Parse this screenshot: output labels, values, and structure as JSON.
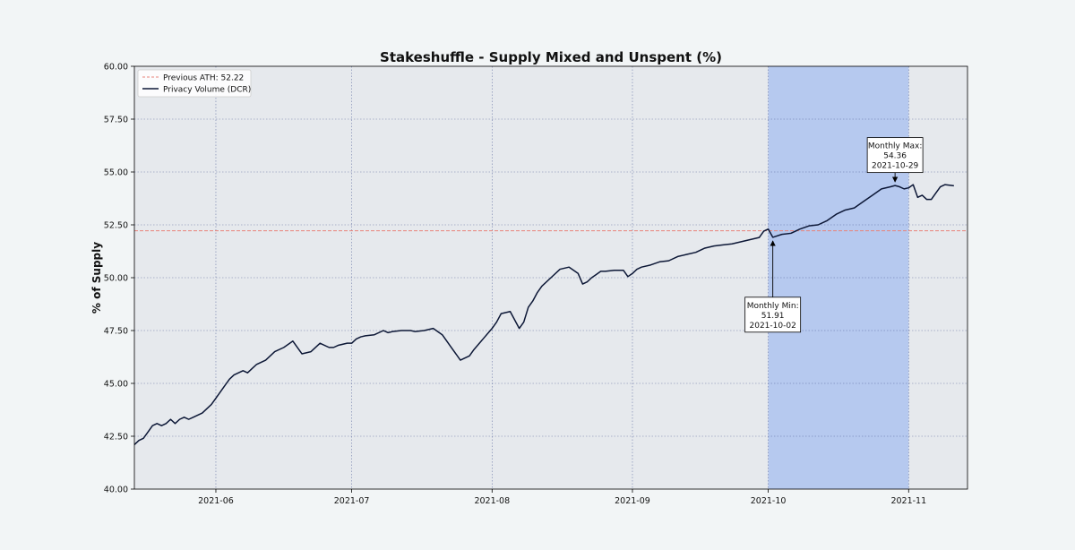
{
  "chart_data": {
    "type": "line",
    "title": "Stakeshuffle - Supply Mixed and Unspent (%)",
    "xlabel": "",
    "ylabel": "% of Supply",
    "ylim": [
      40.0,
      60.0
    ],
    "xlim": [
      "2021-05-14",
      "2021-11-14"
    ],
    "y_ticks": [
      "40.00",
      "42.50",
      "45.00",
      "47.50",
      "50.00",
      "52.50",
      "55.00",
      "57.50",
      "60.00"
    ],
    "x_ticks": [
      {
        "date": "2021-06-01",
        "label": "2021-06"
      },
      {
        "date": "2021-07-01",
        "label": "2021-07"
      },
      {
        "date": "2021-08-01",
        "label": "2021-08"
      },
      {
        "date": "2021-09-01",
        "label": "2021-09"
      },
      {
        "date": "2021-10-01",
        "label": "2021-10"
      },
      {
        "date": "2021-11-01",
        "label": "2021-11"
      }
    ],
    "grid": true,
    "legend_position": "top-left",
    "colors": {
      "plot_background": "#e6e9ed",
      "line": "#0c1736",
      "reference_line": "#e8837b",
      "highlight": "#b6c9ef",
      "grid": "#3a4a8a"
    },
    "reference_line": {
      "name": "Previous ATH: 52.22",
      "y": 52.22
    },
    "highlight_range": [
      "2021-10-01",
      "2021-11-01"
    ],
    "series": [
      {
        "name": "Privacy Volume (DCR)",
        "x": [
          "2021-05-14",
          "2021-05-15",
          "2021-05-16",
          "2021-05-17",
          "2021-05-18",
          "2021-05-19",
          "2021-05-20",
          "2021-05-21",
          "2021-05-22",
          "2021-05-23",
          "2021-05-24",
          "2021-05-25",
          "2021-05-26",
          "2021-05-27",
          "2021-05-28",
          "2021-05-29",
          "2021-05-30",
          "2021-05-31",
          "2021-06-01",
          "2021-06-02",
          "2021-06-03",
          "2021-06-04",
          "2021-06-05",
          "2021-06-06",
          "2021-06-07",
          "2021-06-08",
          "2021-06-09",
          "2021-06-10",
          "2021-06-11",
          "2021-06-12",
          "2021-06-14",
          "2021-06-16",
          "2021-06-18",
          "2021-06-20",
          "2021-06-22",
          "2021-06-24",
          "2021-06-26",
          "2021-06-27",
          "2021-06-28",
          "2021-06-30",
          "2021-07-01",
          "2021-07-02",
          "2021-07-03",
          "2021-07-04",
          "2021-07-06",
          "2021-07-08",
          "2021-07-09",
          "2021-07-10",
          "2021-07-12",
          "2021-07-14",
          "2021-07-15",
          "2021-07-17",
          "2021-07-19",
          "2021-07-21",
          "2021-07-23",
          "2021-07-25",
          "2021-07-27",
          "2021-07-28",
          "2021-07-30",
          "2021-08-01",
          "2021-08-02",
          "2021-08-03",
          "2021-08-05",
          "2021-08-07",
          "2021-08-08",
          "2021-08-09",
          "2021-08-10",
          "2021-08-11",
          "2021-08-12",
          "2021-08-14",
          "2021-08-16",
          "2021-08-18",
          "2021-08-20",
          "2021-08-21",
          "2021-08-22",
          "2021-08-23",
          "2021-08-24",
          "2021-08-25",
          "2021-08-26",
          "2021-08-28",
          "2021-08-30",
          "2021-08-31",
          "2021-09-01",
          "2021-09-02",
          "2021-09-03",
          "2021-09-05",
          "2021-09-07",
          "2021-09-09",
          "2021-09-11",
          "2021-09-13",
          "2021-09-15",
          "2021-09-17",
          "2021-09-19",
          "2021-09-21",
          "2021-09-23",
          "2021-09-25",
          "2021-09-27",
          "2021-09-29",
          "2021-09-30",
          "2021-10-01",
          "2021-10-02",
          "2021-10-04",
          "2021-10-06",
          "2021-10-08",
          "2021-10-10",
          "2021-10-12",
          "2021-10-14",
          "2021-10-16",
          "2021-10-18",
          "2021-10-20",
          "2021-10-22",
          "2021-10-24",
          "2021-10-26",
          "2021-10-28",
          "2021-10-29",
          "2021-10-30",
          "2021-10-31",
          "2021-11-01",
          "2021-11-02",
          "2021-11-03",
          "2021-11-04",
          "2021-11-05",
          "2021-11-06",
          "2021-11-07",
          "2021-11-08",
          "2021-11-09",
          "2021-11-11"
        ],
        "y": [
          42.1,
          42.3,
          42.4,
          42.7,
          43.0,
          43.1,
          43.0,
          43.1,
          43.3,
          43.1,
          43.3,
          43.4,
          43.3,
          43.4,
          43.5,
          43.6,
          43.8,
          44.0,
          44.3,
          44.6,
          44.9,
          45.2,
          45.4,
          45.5,
          45.6,
          45.5,
          45.7,
          45.9,
          46.0,
          46.1,
          46.5,
          46.7,
          47.0,
          46.4,
          46.5,
          46.9,
          46.7,
          46.7,
          46.8,
          46.9,
          46.9,
          47.1,
          47.2,
          47.25,
          47.3,
          47.5,
          47.4,
          47.45,
          47.5,
          47.5,
          47.45,
          47.5,
          47.6,
          47.3,
          46.7,
          46.1,
          46.3,
          46.6,
          47.1,
          47.6,
          47.9,
          48.3,
          48.4,
          47.6,
          47.9,
          48.6,
          48.9,
          49.3,
          49.6,
          50.0,
          50.4,
          50.5,
          50.2,
          49.7,
          49.8,
          50.0,
          50.15,
          50.3,
          50.3,
          50.35,
          50.35,
          50.05,
          50.2,
          50.4,
          50.5,
          50.6,
          50.75,
          50.8,
          51.0,
          51.1,
          51.2,
          51.4,
          51.5,
          51.55,
          51.6,
          51.7,
          51.8,
          51.9,
          52.2,
          52.3,
          51.91,
          52.05,
          52.1,
          52.3,
          52.45,
          52.5,
          52.7,
          53.0,
          53.2,
          53.3,
          53.6,
          53.9,
          54.2,
          54.3,
          54.36,
          54.3,
          54.2,
          54.25,
          54.4,
          53.8,
          53.9,
          53.7,
          53.7,
          54.0,
          54.3,
          54.4,
          54.35
        ]
      }
    ],
    "annotations": [
      {
        "lines": [
          "Monthly Max:",
          "54.36",
          "2021-10-29"
        ],
        "x": "2021-10-29",
        "y": 54.36,
        "box_x": "2021-10-29",
        "box_y": 55.8
      },
      {
        "lines": [
          "Monthly Min:",
          "51.91",
          "2021-10-02"
        ],
        "x": "2021-10-02",
        "y": 51.91,
        "box_x": "2021-10-02",
        "box_y": 48.25
      }
    ]
  }
}
